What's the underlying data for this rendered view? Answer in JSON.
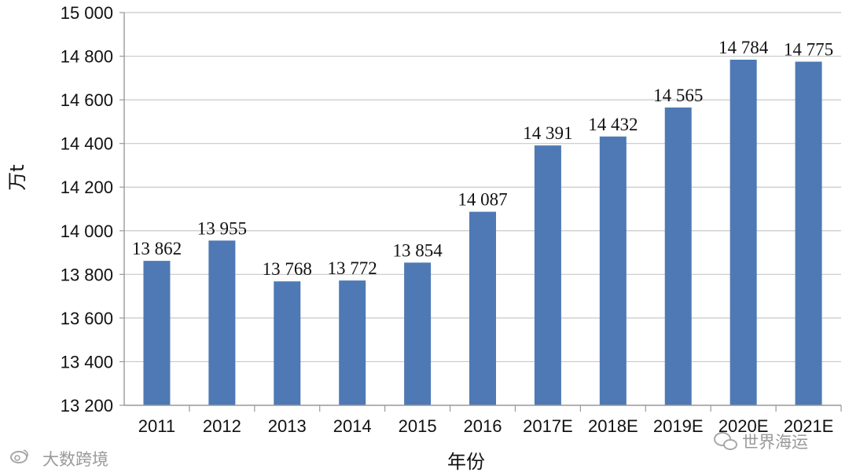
{
  "chart_data": {
    "type": "bar",
    "categories": [
      "2011",
      "2012",
      "2013",
      "2014",
      "2015",
      "2016",
      "2017E",
      "2018E",
      "2019E",
      "2020E",
      "2021E"
    ],
    "values": [
      13862,
      13955,
      13768,
      13772,
      13854,
      14087,
      14391,
      14432,
      14565,
      14784,
      14775
    ],
    "data_labels": [
      "13 862",
      "13 955",
      "13 768",
      "13 772",
      "13 854",
      "14 087",
      "14 391",
      "14 432",
      "14 565",
      "14 784",
      "14 775"
    ],
    "ylim": [
      13200,
      15000
    ],
    "yticks": [
      13200,
      13400,
      13600,
      13800,
      14000,
      14200,
      14400,
      14600,
      14800,
      15000
    ],
    "ytick_labels": [
      "13 200",
      "13 400",
      "13 600",
      "13 800",
      "14 000",
      "14 200",
      "14 400",
      "14 600",
      "14 800",
      "15 000"
    ],
    "xlabel": "年份",
    "ylabel": "万t",
    "grid": true,
    "bar_color": "#4e79b4",
    "grid_color": "#c8c8c8"
  },
  "watermarks": {
    "left": "大数跨境",
    "right": "世界海运"
  }
}
